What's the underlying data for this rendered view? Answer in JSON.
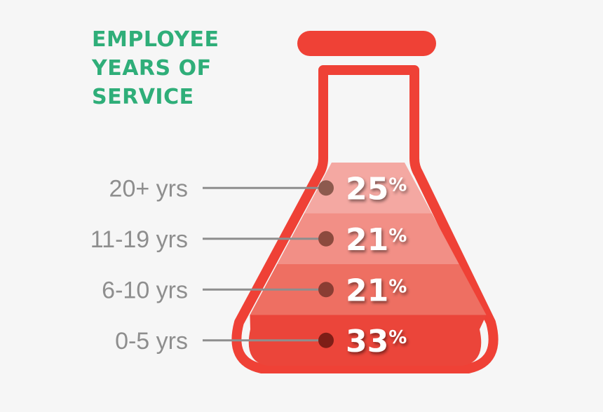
{
  "chart_data": {
    "type": "bar",
    "title": "EMPLOYEE YEARS OF SERVICE",
    "categories": [
      "20+ yrs",
      "11-19 yrs",
      "6-10 yrs",
      "0-5 yrs"
    ],
    "values": [
      25,
      21,
      21,
      33
    ],
    "value_suffix": "%",
    "colors": {
      "title": "#2fae79",
      "flask_outline": "#ef4136",
      "band_fills": [
        "#f4a8a2",
        "#f28f86",
        "#ee6f62",
        "#eb453a"
      ],
      "connector": "#8e8e8e",
      "dots": [
        "#8d5a4e",
        "#8c4a3e",
        "#8a3d33",
        "#7e1e17"
      ],
      "category_text": "#8e8e8e",
      "value_text": "#ffffff",
      "background": "#f6f6f6"
    }
  }
}
